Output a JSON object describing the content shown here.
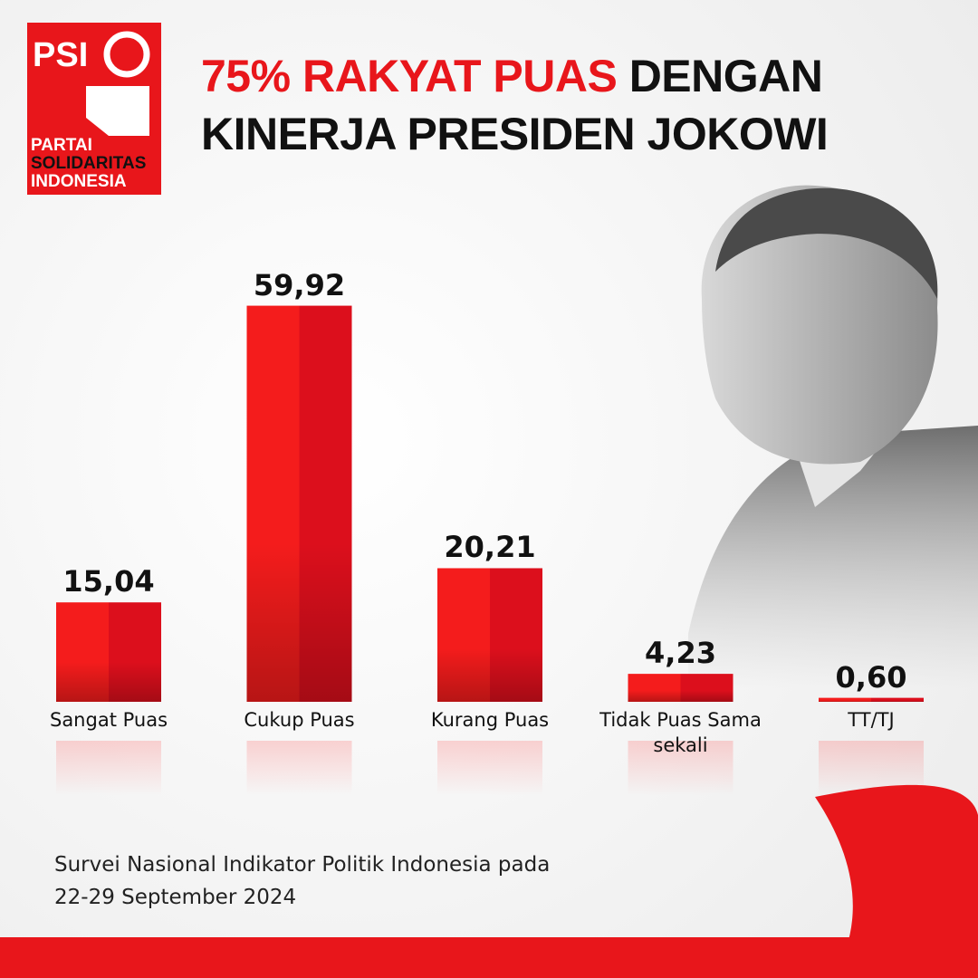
{
  "logo": {
    "short": "PSI",
    "line1": "PARTAI",
    "line2": "SOLIDARITAS",
    "line3": "INDONESIA"
  },
  "chart_data": {
    "type": "bar",
    "title": {
      "highlight": "75% RAKYAT PUAS",
      "line1_rest": "DENGAN",
      "line2": "KINERJA PRESIDEN JOKOWI"
    },
    "categories": [
      "Sangat Puas",
      "Cukup Puas",
      "Kurang Puas",
      "Tidak Puas Sama sekali",
      "TT/TJ"
    ],
    "values": [
      15.04,
      59.92,
      20.21,
      4.23,
      0.6
    ],
    "value_labels": [
      "15,04",
      "59,92",
      "20,21",
      "4,23",
      "0,60"
    ],
    "color": "#e8161b",
    "source": [
      "Survei Nasional Indikator Politik Indonesia pada",
      "22-29 September 2024"
    ]
  }
}
